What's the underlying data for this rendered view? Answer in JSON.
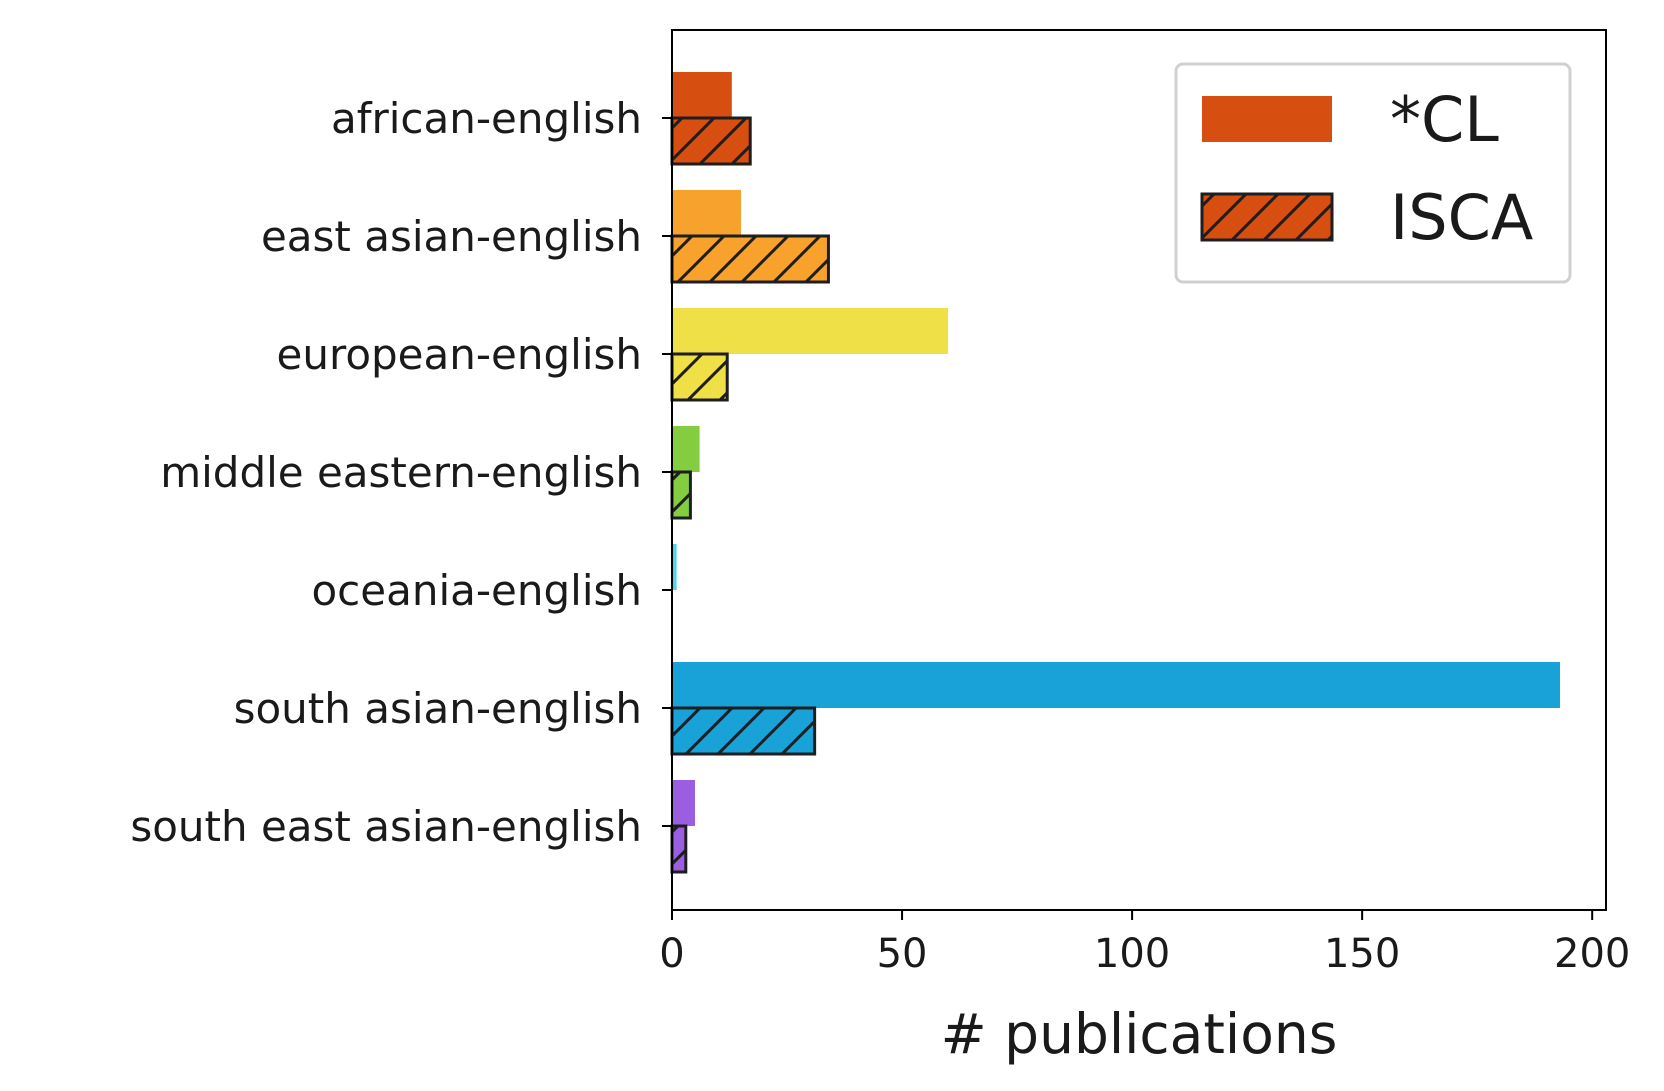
{
  "chart_data": {
    "type": "bar",
    "orientation": "horizontal",
    "categories": [
      "african-english",
      "east asian-english",
      "european-english",
      "middle eastern-english",
      "oceania-english",
      "south asian-english",
      "south east asian-english"
    ],
    "category_colors": [
      "#d64f11",
      "#f7a22c",
      "#efe048",
      "#84cd41",
      "#4cd4f0",
      "#18a2d8",
      "#9b5ee0"
    ],
    "series": [
      {
        "name": "*CL",
        "hatch": false,
        "values": [
          13,
          15,
          60,
          6,
          1,
          193,
          5
        ]
      },
      {
        "name": "ISCA",
        "hatch": true,
        "values": [
          17,
          34,
          12,
          4,
          0,
          31,
          3
        ]
      }
    ],
    "xlabel": "# publications",
    "ylabel": "",
    "xlim": [
      0,
      203
    ],
    "xticks": [
      0,
      50,
      100,
      150,
      200
    ],
    "grid": false,
    "legend_position": "top-right",
    "legend_color": "#d64f11"
  }
}
